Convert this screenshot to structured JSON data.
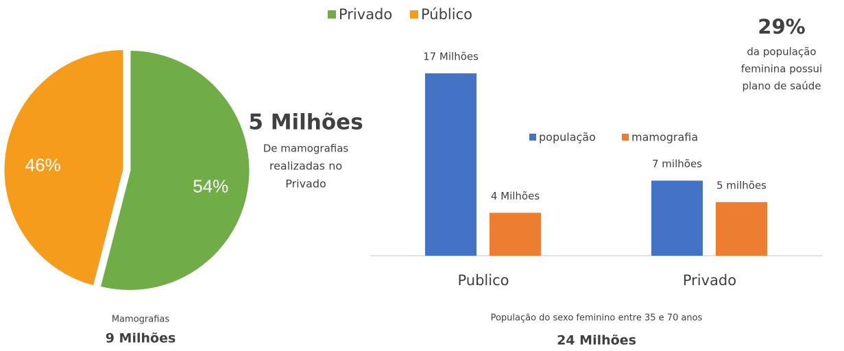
{
  "chart_data": [
    {
      "type": "pie",
      "title": "Mamografias",
      "subtitle": "9 Milhões",
      "categories": [
        "Privado",
        "Público"
      ],
      "values": [
        54,
        46
      ],
      "value_labels": [
        "54%",
        "46%"
      ],
      "colors": [
        "#70ad47",
        "#f59c1d"
      ],
      "annotations": [
        "5 Milhões",
        "De mamografias",
        "realizadas no",
        "Privado"
      ]
    },
    {
      "type": "bar",
      "title": "População do sexo feminino entre 35 e 70 anos",
      "subtitle": "24 Milhões",
      "categories": [
        "Publico",
        "Privado"
      ],
      "series": [
        {
          "name": "população",
          "color": "#4472c4",
          "values": [
            17,
            7
          ],
          "value_labels": [
            "17 Milhões",
            "7 milhões"
          ]
        },
        {
          "name": "mamografia",
          "color": "#ed7d31",
          "values": [
            4,
            5
          ],
          "value_labels": [
            "4 Milhões",
            "5 milhões"
          ]
        }
      ],
      "annotations": [
        "29%",
        "da população",
        "feminina possui",
        "plano de saúde"
      ]
    }
  ]
}
